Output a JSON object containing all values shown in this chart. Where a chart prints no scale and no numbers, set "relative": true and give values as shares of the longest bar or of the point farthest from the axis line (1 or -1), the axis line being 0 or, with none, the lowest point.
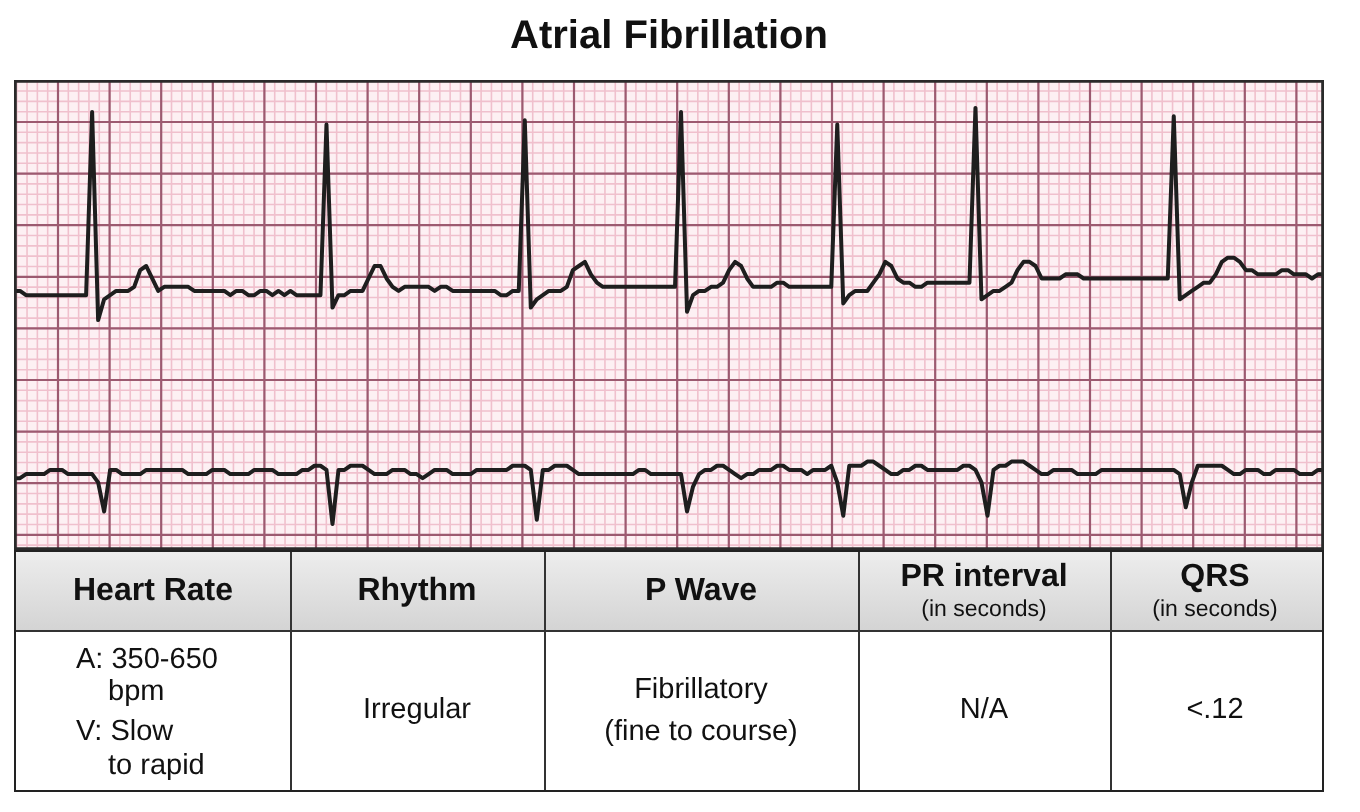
{
  "chart_data": {
    "type": "line",
    "title": "Atrial Fibrillation",
    "relative": true,
    "grid": true,
    "tick_labels": false,
    "categories": [
      null,
      null,
      null,
      null,
      null,
      null,
      null,
      null,
      null,
      null,
      null,
      null,
      null,
      null,
      null,
      null,
      null,
      null,
      null,
      null,
      null,
      null,
      null,
      null,
      null,
      null,
      null,
      null,
      null,
      null,
      null,
      null,
      null,
      null,
      null,
      null,
      null,
      null,
      null,
      null,
      null,
      null,
      null,
      null,
      null,
      null,
      null,
      null,
      null,
      null,
      null,
      null,
      null,
      null,
      null,
      null,
      null,
      null,
      null,
      null,
      null,
      null,
      null,
      null,
      null,
      null,
      null,
      null,
      null,
      null,
      null,
      null,
      null,
      null,
      null,
      null,
      null,
      null,
      null,
      null,
      null,
      null,
      null,
      null,
      null,
      null,
      null,
      null,
      null,
      null,
      null,
      null,
      null,
      null,
      null,
      null,
      null,
      null,
      null,
      null,
      null,
      null,
      null,
      null,
      null,
      null,
      null,
      null,
      null,
      null,
      null,
      null,
      null,
      null,
      null,
      null,
      null,
      null,
      null,
      null,
      null,
      null,
      null,
      null,
      null,
      null,
      null,
      null,
      null,
      null,
      null,
      null,
      null,
      null,
      null,
      null,
      null,
      null,
      null,
      null,
      null,
      null,
      null,
      null,
      null,
      null,
      null,
      null,
      null,
      null,
      null,
      null,
      null,
      null,
      null,
      null,
      null,
      null,
      null,
      null,
      null,
      null,
      null,
      null,
      null,
      null,
      null,
      null,
      null,
      null,
      null,
      null,
      null,
      null,
      null,
      null,
      null,
      null,
      null,
      null,
      null,
      null,
      null,
      null,
      null,
      null,
      null,
      null,
      null,
      null,
      null,
      null,
      null,
      null,
      null,
      null,
      null,
      null,
      null,
      null,
      null,
      null,
      null,
      null,
      null,
      null,
      null,
      null,
      null,
      null,
      null,
      null,
      null,
      null,
      null,
      null,
      null,
      null,
      null
    ],
    "series": [
      {
        "color": "#1e1e1e",
        "values": [
          0.56,
          0.56,
          0.55,
          0.55,
          0.55,
          0.55,
          0.55,
          0.55,
          0.55,
          0.55,
          0.55,
          0.55,
          0.55,
          0.99,
          0.49,
          0.54,
          0.55,
          0.56,
          0.56,
          0.56,
          0.57,
          0.61,
          0.62,
          0.59,
          0.56,
          0.57,
          0.57,
          0.57,
          0.57,
          0.57,
          0.56,
          0.56,
          0.56,
          0.56,
          0.56,
          0.56,
          0.55,
          0.56,
          0.56,
          0.55,
          0.55,
          0.56,
          0.56,
          0.55,
          0.56,
          0.55,
          0.56,
          0.55,
          0.55,
          0.55,
          0.55,
          0.55,
          0.96,
          0.52,
          0.55,
          0.55,
          0.56,
          0.56,
          0.56,
          0.59,
          0.62,
          0.62,
          0.59,
          0.57,
          0.56,
          0.57,
          0.57,
          0.57,
          0.57,
          0.57,
          0.56,
          0.57,
          0.57,
          0.56,
          0.56,
          0.56,
          0.56,
          0.56,
          0.56,
          0.56,
          0.56,
          0.55,
          0.55,
          0.56,
          0.56,
          0.97,
          0.52,
          0.54,
          0.55,
          0.56,
          0.56,
          0.56,
          0.57,
          0.61,
          0.62,
          0.63,
          0.6,
          0.58,
          0.57,
          0.57,
          0.57,
          0.57,
          0.57,
          0.57,
          0.57,
          0.57,
          0.57,
          0.57,
          0.57,
          0.57,
          0.57,
          0.99,
          0.51,
          0.55,
          0.56,
          0.56,
          0.57,
          0.57,
          0.58,
          0.61,
          0.63,
          0.62,
          0.59,
          0.57,
          0.57,
          0.57,
          0.57,
          0.58,
          0.58,
          0.57,
          0.57,
          0.57,
          0.57,
          0.57,
          0.57,
          0.57,
          0.57,
          0.96,
          0.53,
          0.55,
          0.56,
          0.56,
          0.56,
          0.58,
          0.6,
          0.63,
          0.62,
          0.59,
          0.58,
          0.58,
          0.57,
          0.57,
          0.58,
          0.58,
          0.58,
          0.58,
          0.58,
          0.58,
          0.58,
          0.58,
          1,
          0.54,
          0.55,
          0.56,
          0.56,
          0.57,
          0.58,
          0.61,
          0.63,
          0.63,
          0.62,
          0.59,
          0.59,
          0.59,
          0.59,
          0.6,
          0.6,
          0.6,
          0.59,
          0.59,
          0.59,
          0.59,
          0.59,
          0.59,
          0.59,
          0.59,
          0.59,
          0.59,
          0.59,
          0.59,
          0.59,
          0.59,
          0.59,
          0.98,
          0.54,
          0.55,
          0.56,
          0.57,
          0.58,
          0.58,
          0.6,
          0.63,
          0.64,
          0.64,
          0.63,
          0.61,
          0.61,
          0.6,
          0.6,
          0.6,
          0.6,
          0.61,
          0.61,
          0.6,
          0.6,
          0.6,
          0.59,
          0.6,
          0.6
        ]
      },
      {
        "color": "#1e1e1e",
        "values": [
          0.11,
          0.11,
          0.12,
          0.12,
          0.12,
          0.12,
          0.13,
          0.13,
          0.13,
          0.12,
          0.12,
          0.12,
          0.12,
          0.12,
          0.1,
          0.03,
          0.13,
          0.13,
          0.12,
          0.12,
          0.12,
          0.12,
          0.13,
          0.13,
          0.13,
          0.13,
          0.13,
          0.13,
          0.13,
          0.12,
          0.12,
          0.12,
          0.12,
          0.13,
          0.13,
          0.13,
          0.12,
          0.12,
          0.12,
          0.12,
          0.13,
          0.13,
          0.13,
          0.13,
          0.12,
          0.12,
          0.12,
          0.12,
          0.13,
          0.13,
          0.14,
          0.14,
          0.13,
          0,
          0.13,
          0.13,
          0.14,
          0.14,
          0.14,
          0.13,
          0.12,
          0.12,
          0.12,
          0.13,
          0.13,
          0.13,
          0.12,
          0.12,
          0.11,
          0.12,
          0.13,
          0.13,
          0.13,
          0.12,
          0.12,
          0.12,
          0.12,
          0.13,
          0.13,
          0.13,
          0.13,
          0.13,
          0.13,
          0.14,
          0.14,
          0.14,
          0.13,
          0.01,
          0.13,
          0.13,
          0.14,
          0.14,
          0.14,
          0.13,
          0.12,
          0.12,
          0.12,
          0.12,
          0.12,
          0.12,
          0.12,
          0.12,
          0.12,
          0.12,
          0.13,
          0.13,
          0.12,
          0.12,
          0.12,
          0.12,
          0.12,
          0.12,
          0.03,
          0.09,
          0.12,
          0.13,
          0.13,
          0.14,
          0.14,
          0.13,
          0.12,
          0.11,
          0.12,
          0.12,
          0.13,
          0.13,
          0.13,
          0.14,
          0.14,
          0.13,
          0.13,
          0.13,
          0.12,
          0.13,
          0.13,
          0.13,
          0.14,
          0.1,
          0.02,
          0.14,
          0.14,
          0.14,
          0.15,
          0.15,
          0.14,
          0.13,
          0.12,
          0.12,
          0.13,
          0.13,
          0.14,
          0.14,
          0.13,
          0.13,
          0.13,
          0.13,
          0.13,
          0.13,
          0.14,
          0.14,
          0.13,
          0.1,
          0.02,
          0.13,
          0.14,
          0.14,
          0.15,
          0.15,
          0.15,
          0.14,
          0.13,
          0.12,
          0.12,
          0.13,
          0.13,
          0.13,
          0.13,
          0.12,
          0.12,
          0.12,
          0.12,
          0.13,
          0.13,
          0.13,
          0.13,
          0.13,
          0.13,
          0.13,
          0.13,
          0.13,
          0.13,
          0.13,
          0.13,
          0.13,
          0.12,
          0.04,
          0.1,
          0.14,
          0.14,
          0.14,
          0.14,
          0.14,
          0.13,
          0.12,
          0.12,
          0.13,
          0.13,
          0.13,
          0.12,
          0.12,
          0.13,
          0.13,
          0.13,
          0.13,
          0.12,
          0.12,
          0.12,
          0.13,
          0.13
        ]
      }
    ],
    "annotations": [
      "Heart Rate",
      "Rhythm",
      "P Wave",
      "PR interval",
      "(in seconds)",
      "QRS",
      "(in seconds)",
      "A: 350-650",
      "bpm",
      "V: Slow",
      "to rapid",
      "Irregular",
      "Fibrillatory",
      "(fine to course)",
      "N/A",
      "<.12"
    ]
  }
}
